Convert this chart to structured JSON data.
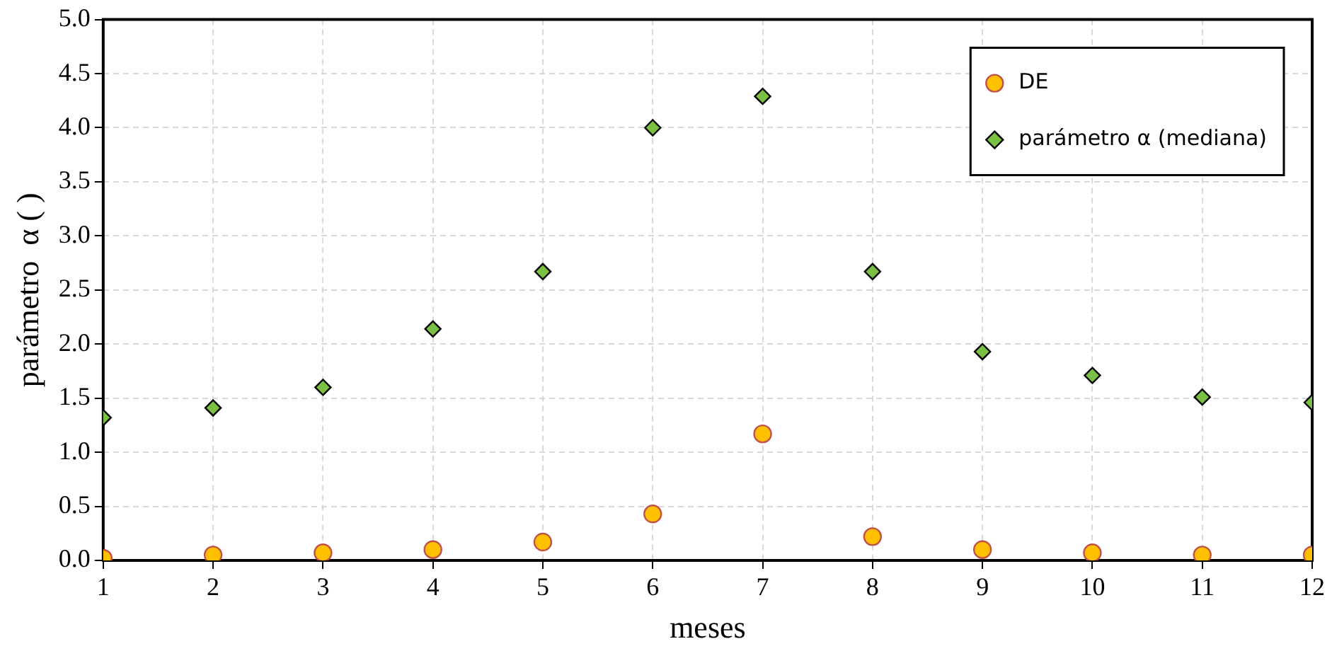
{
  "chart_data": {
    "type": "scatter",
    "xlabel": "meses",
    "ylabel": "parámetro  α ( )",
    "x": [
      1,
      2,
      3,
      4,
      5,
      6,
      7,
      8,
      9,
      10,
      11,
      12
    ],
    "series": [
      {
        "name": "DE",
        "color": "#ffc000",
        "marker": "circle",
        "values": [
          0.02,
          0.05,
          0.07,
          0.1,
          0.17,
          0.43,
          1.17,
          0.22,
          0.1,
          0.07,
          0.05,
          0.05
        ]
      },
      {
        "name": "parámetro α (mediana)",
        "color": "#7ac143",
        "marker": "diamond",
        "values": [
          1.32,
          1.41,
          1.6,
          2.14,
          2.67,
          4.0,
          4.29,
          2.67,
          1.93,
          1.71,
          1.51,
          1.46
        ]
      }
    ],
    "xlim": [
      1,
      12
    ],
    "xticks": [
      1,
      2,
      3,
      4,
      5,
      6,
      7,
      8,
      9,
      10,
      11,
      12
    ],
    "ylim": [
      0,
      5
    ],
    "yticks": [
      {
        "value": 0,
        "label": "0.0"
      },
      {
        "value": 0.5,
        "label": "0.5"
      },
      {
        "value": 1,
        "label": "1.0"
      },
      {
        "value": 1.5,
        "label": "1.5"
      },
      {
        "value": 2,
        "label": "2.0"
      },
      {
        "value": 2.5,
        "label": "2.5"
      },
      {
        "value": 3,
        "label": "3.0"
      },
      {
        "value": 3.5,
        "label": "3.5"
      },
      {
        "value": 4,
        "label": "4.0"
      },
      {
        "value": 4.5,
        "label": "4.5"
      },
      {
        "value": 5,
        "label": "5.0"
      }
    ],
    "grid": true,
    "legend": "top right"
  }
}
